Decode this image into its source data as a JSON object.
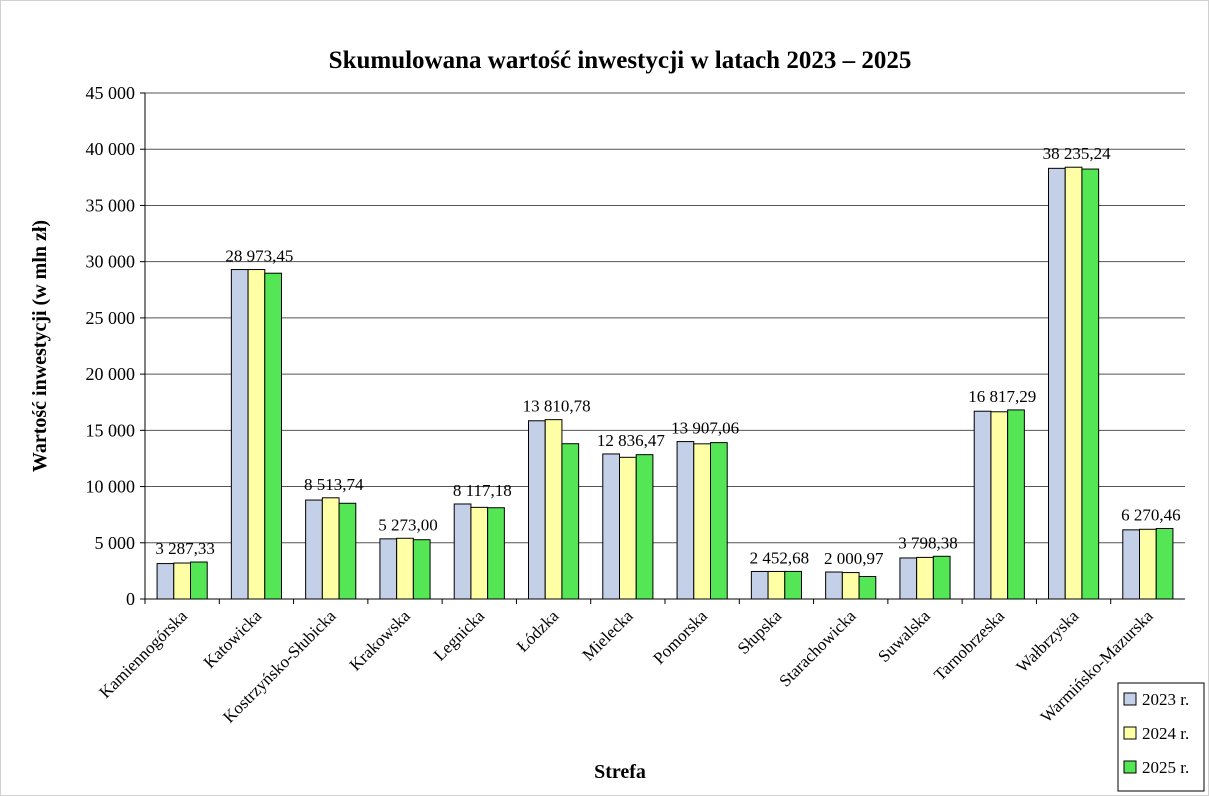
{
  "chart_data": {
    "type": "bar",
    "title": "Skumulowana wartość inwestycji w latach 2023 – 2025",
    "x_label": "Strefa",
    "y_label": "Wartość inwestycji (w mln  zł)",
    "categories": [
      "Kamiennogórska",
      "Katowicka",
      "Kostrzyńsko-Słubicka",
      "Krakowska",
      "Legnicka",
      "Łódzka",
      "Mielecka",
      "Pomorska",
      "Słupska",
      "Starachowicka",
      "Suwalska",
      "Tarnobrzeska",
      "Wałbrzyska",
      "Warmińsko-Mazurska"
    ],
    "series": [
      {
        "name": "2023 r.",
        "color": "#c3d0e8",
        "values": [
          3150,
          29300,
          8800,
          5350,
          8450,
          15850,
          12900,
          14000,
          2450,
          2400,
          3650,
          16700,
          38300,
          6150
        ]
      },
      {
        "name": "2024 r.",
        "color": "#ffffa6",
        "values": [
          3200,
          29300,
          9000,
          5400,
          8150,
          15950,
          12600,
          13800,
          2450,
          2350,
          3700,
          16650,
          38400,
          6200
        ]
      },
      {
        "name": "2025 r.",
        "color": "#55e655",
        "values": [
          3287.33,
          28973.45,
          8513.74,
          5273.0,
          8117.18,
          13810.78,
          12836.47,
          13907.06,
          2452.68,
          2000.97,
          3798.38,
          16817.29,
          38235.24,
          6270.46
        ],
        "value_labels": [
          "3 287,33",
          "28 973,45",
          "8 513,74",
          "5 273,00",
          "8 117,18",
          "13 810,78",
          "12 836,47",
          "13 907,06",
          "2 452,68",
          "2 000,97",
          "3 798,38",
          "16 817,29",
          "38 235,24",
          "6 270,46"
        ]
      }
    ],
    "ylim": [
      0,
      45000
    ],
    "yticks": [
      0,
      {
        "value": 5000,
        "label": "5 000"
      },
      {
        "value": 10000,
        "label": "10 000"
      },
      {
        "value": 15000,
        "label": "15 000"
      },
      {
        "value": 20000,
        "label": "20 000"
      },
      {
        "value": 25000,
        "label": "25 000"
      },
      {
        "value": 30000,
        "label": "30 000"
      },
      {
        "value": 35000,
        "label": "35 000"
      },
      {
        "value": 40000,
        "label": "40 000"
      },
      {
        "value": 45000,
        "label": "45 000"
      }
    ],
    "grid": true,
    "legend": "lower right"
  }
}
